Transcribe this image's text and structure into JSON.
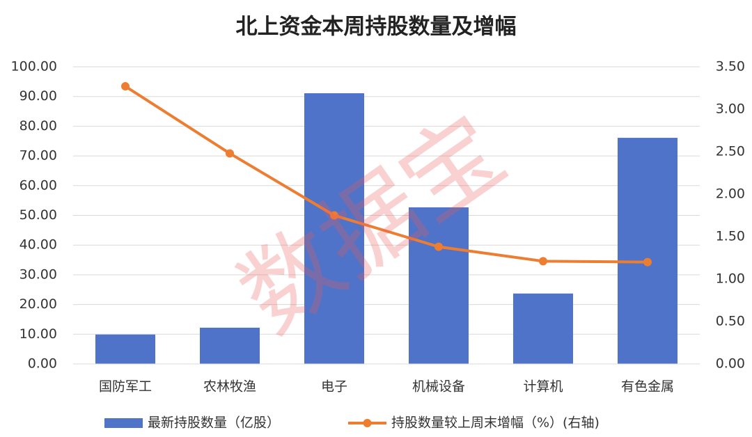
{
  "chart_data": {
    "type": "bar_line",
    "title": "北上资金本周持股数量及增幅",
    "watermark": "数据宝",
    "categories": [
      "国防军工",
      "农林牧渔",
      "电子",
      "机械设备",
      "计算机",
      "有色金属"
    ],
    "series": [
      {
        "name": "最新持股数量（亿股）",
        "type": "bar",
        "color": "#4f73c8",
        "values": [
          9.9,
          12.2,
          91.1,
          52.7,
          23.7,
          76.1
        ]
      },
      {
        "name": "持股数量较上周末增幅（%）(右轴)",
        "type": "line",
        "axis": "y2",
        "color": "#ed7d31",
        "values": [
          3.27,
          2.48,
          1.75,
          1.38,
          1.21,
          1.2
        ]
      }
    ],
    "ylim": [
      0,
      100
    ],
    "yticks": [
      {
        "value": 0,
        "label": "0.00"
      },
      {
        "value": 10,
        "label": "10.00"
      },
      {
        "value": 20,
        "label": "20.00"
      },
      {
        "value": 30,
        "label": "30.00"
      },
      {
        "value": 40,
        "label": "40.00"
      },
      {
        "value": 50,
        "label": "50.00"
      },
      {
        "value": 60,
        "label": "60.00"
      },
      {
        "value": 70,
        "label": "70.00"
      },
      {
        "value": 80,
        "label": "80.00"
      },
      {
        "value": 90,
        "label": "90.00"
      },
      {
        "value": 100,
        "label": "100.00"
      }
    ],
    "y2lim": [
      0,
      3.5
    ],
    "y2ticks": [
      {
        "value": 0,
        "label": "0.00"
      },
      {
        "value": 0.5,
        "label": "0.50"
      },
      {
        "value": 1,
        "label": "1.00"
      },
      {
        "value": 1.5,
        "label": "1.50"
      },
      {
        "value": 2,
        "label": "2.00"
      },
      {
        "value": 2.5,
        "label": "2.50"
      },
      {
        "value": 3,
        "label": "3.00"
      },
      {
        "value": 3.5,
        "label": "3.50"
      }
    ],
    "grid": true,
    "legend": "bottom"
  }
}
